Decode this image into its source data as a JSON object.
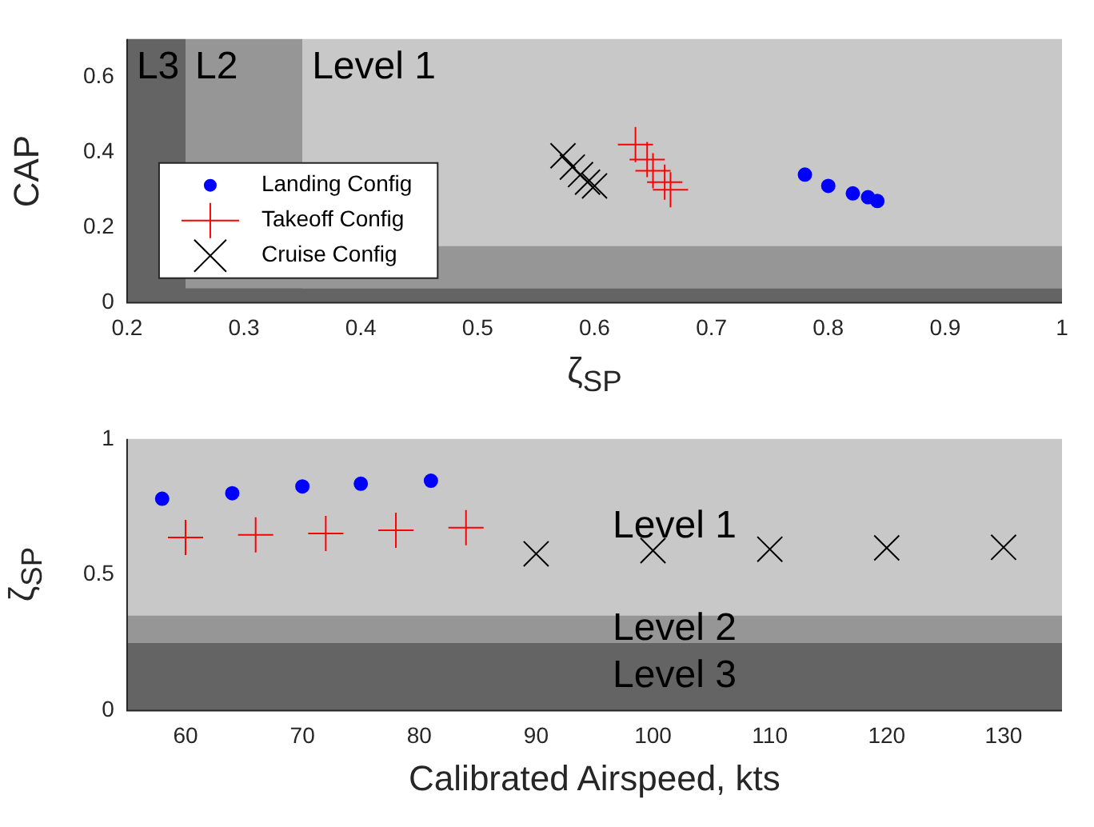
{
  "chart_data": [
    {
      "type": "scatter",
      "xlabel": "ζ$_{SP}$",
      "ylabel": "CAP",
      "xlim": [
        0.2,
        1
      ],
      "xticks": [
        0.2,
        0.3,
        0.4,
        0.5,
        0.6,
        0.7,
        0.8,
        0.9,
        1
      ],
      "ylim": [
        0,
        0.7
      ],
      "yticks": [
        0,
        0.2,
        0.4,
        0.6
      ],
      "legend": "left",
      "grid": false,
      "bands": [
        {
          "axis": "x",
          "from": 0.35,
          "to": 1,
          "label": "Level 1",
          "color": "#c8c8c8"
        },
        {
          "axis": "x",
          "from": 0.25,
          "to": 0.35,
          "label": "L2",
          "color": "#969696"
        },
        {
          "axis": "y",
          "from": 0.038,
          "to": 0.15,
          "color": "#969696"
        },
        {
          "axis": "x",
          "from": 0.2,
          "to": 0.25,
          "label": "L3",
          "color": "#646464"
        },
        {
          "axis": "y",
          "from": 0,
          "to": 0.038,
          "color": "#646464"
        }
      ],
      "series": [
        {
          "name": "Landing Config",
          "color": "#0000ff",
          "marker": "circle",
          "x": [
            0.78,
            0.8,
            0.821,
            0.834,
            0.842
          ],
          "values": [
            0.34,
            0.31,
            0.29,
            0.28,
            0.27
          ]
        },
        {
          "name": "Takeoff Config",
          "color": "#ff0000",
          "marker": "cross",
          "x": [
            0.635,
            0.645,
            0.65,
            0.66,
            0.665
          ],
          "values": [
            0.42,
            0.38,
            0.35,
            0.32,
            0.3
          ]
        },
        {
          "name": "Cruise Config",
          "color": "#000000",
          "marker": "x",
          "x": [
            0.573,
            0.581,
            0.588,
            0.594,
            0.6
          ],
          "values": [
            0.39,
            0.36,
            0.34,
            0.32,
            0.31
          ]
        }
      ]
    },
    {
      "type": "scatter",
      "xlabel": "Calibrated Airspeed, kts",
      "ylabel": "ζ$_{SP}$",
      "xlim": [
        55,
        135
      ],
      "xticks": [
        60,
        70,
        80,
        90,
        100,
        110,
        120,
        130
      ],
      "ylim": [
        0,
        1
      ],
      "yticks": [
        0,
        0.5,
        1
      ],
      "grid": false,
      "bands": [
        {
          "axis": "y",
          "from": 0.35,
          "to": 1,
          "label": "Level 1",
          "color": "#c8c8c8"
        },
        {
          "axis": "y",
          "from": 0.25,
          "to": 0.35,
          "label": "Level 2",
          "color": "#969696"
        },
        {
          "axis": "y",
          "from": 0,
          "to": 0.25,
          "label": "Level 3",
          "color": "#646464"
        }
      ],
      "series": [
        {
          "color": "#0000ff",
          "marker": "circle",
          "x": [
            58,
            64,
            70,
            75,
            81
          ],
          "values": [
            0.78,
            0.8,
            0.825,
            0.835,
            0.846
          ]
        },
        {
          "color": "#ff0000",
          "marker": "cross",
          "x": [
            60,
            66,
            72,
            78,
            84
          ],
          "values": [
            0.637,
            0.647,
            0.652,
            0.664,
            0.673
          ]
        },
        {
          "color": "#000000",
          "marker": "x",
          "x": [
            90,
            100,
            110,
            120,
            130
          ],
          "values": [
            0.577,
            0.589,
            0.594,
            0.599,
            0.601
          ]
        }
      ]
    }
  ]
}
